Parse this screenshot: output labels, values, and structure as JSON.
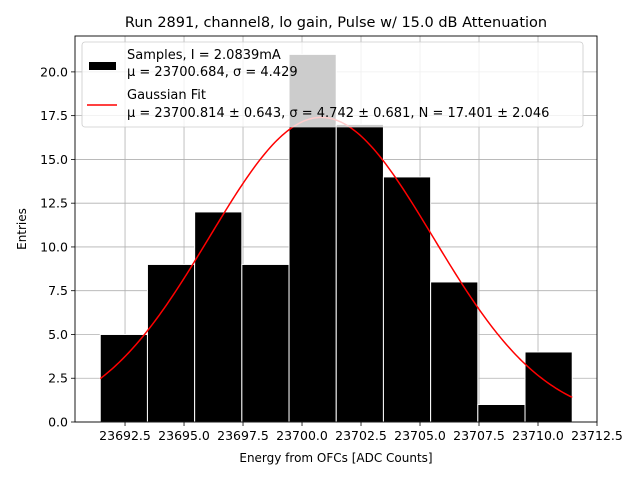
{
  "chart_data": {
    "type": "bar",
    "title": "Run 2891, channel8, lo gain, Pulse w/ 15.0 dB Attenuation",
    "xlabel": "Energy from OFCs [ADC Counts]",
    "ylabel": "Entries",
    "xlim": [
      23690.38,
      23712.5
    ],
    "ylim": [
      0,
      22.05
    ],
    "grid": true,
    "legend_placement": "top",
    "x_ticks": [
      "23692.5",
      "23695.0",
      "23697.5",
      "23700.0",
      "23702.5",
      "23705.0",
      "23707.5",
      "23710.0",
      "23712.5"
    ],
    "x_tick_values": [
      23692.5,
      23695.0,
      23697.5,
      23700.0,
      23702.5,
      23705.0,
      23707.5,
      23710.0,
      23712.5
    ],
    "y_ticks": [
      "0.0",
      "2.5",
      "5.0",
      "7.5",
      "10.0",
      "12.5",
      "15.0",
      "17.5",
      "20.0"
    ],
    "y_tick_values": [
      0,
      2.5,
      5,
      7.5,
      10,
      12.5,
      15,
      17.5,
      20
    ],
    "histogram": {
      "bin_edges": [
        23691.45,
        23693.45,
        23695.45,
        23697.45,
        23699.45,
        23701.45,
        23703.45,
        23705.45,
        23707.45,
        23709.45,
        23711.45
      ],
      "counts": [
        5,
        9,
        12,
        9,
        21,
        17,
        14,
        8,
        1,
        4
      ],
      "color": "#000000"
    },
    "fit": {
      "mu": 23700.814,
      "sigma": 4.742,
      "N": 17.401,
      "x_range": [
        23691.45,
        23711.45
      ],
      "color": "#ff0000"
    },
    "legend": [
      {
        "line1": "Samples, I = 2.0839mA",
        "line2": "μ = 23700.684, σ = 4.429"
      },
      {
        "line1": "Gaussian Fit",
        "line2": "μ = 23700.814 ± 0.643, σ = 4.742 ± 0.681, N = 17.401 ± 2.046"
      }
    ]
  }
}
